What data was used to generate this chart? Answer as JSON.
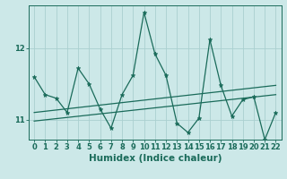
{
  "xlabel": "Humidex (Indice chaleur)",
  "background_color": "#cce8e8",
  "line_color": "#1a6b5a",
  "xlim": [
    -0.5,
    22.5
  ],
  "ylim": [
    10.72,
    12.6
  ],
  "yticks": [
    11,
    12
  ],
  "xticks": [
    0,
    1,
    2,
    3,
    4,
    5,
    6,
    7,
    8,
    9,
    10,
    11,
    12,
    13,
    14,
    15,
    16,
    17,
    18,
    19,
    20,
    21,
    22
  ],
  "x": [
    0,
    1,
    2,
    3,
    4,
    5,
    6,
    7,
    8,
    9,
    10,
    11,
    12,
    13,
    14,
    15,
    16,
    17,
    18,
    19,
    20,
    21,
    22
  ],
  "y_data": [
    11.6,
    11.35,
    11.3,
    11.1,
    11.72,
    11.5,
    11.15,
    10.88,
    11.35,
    11.62,
    12.5,
    11.92,
    11.62,
    10.95,
    10.82,
    11.02,
    12.12,
    11.48,
    11.05,
    11.28,
    11.32,
    10.72,
    11.1
  ],
  "trend1_start_y": 11.1,
  "trend1_end_y": 11.48,
  "trend2_start_y": 10.98,
  "trend2_end_y": 11.35,
  "grid_color": "#aad0d0",
  "tick_fontsize": 6,
  "label_fontsize": 7.5
}
